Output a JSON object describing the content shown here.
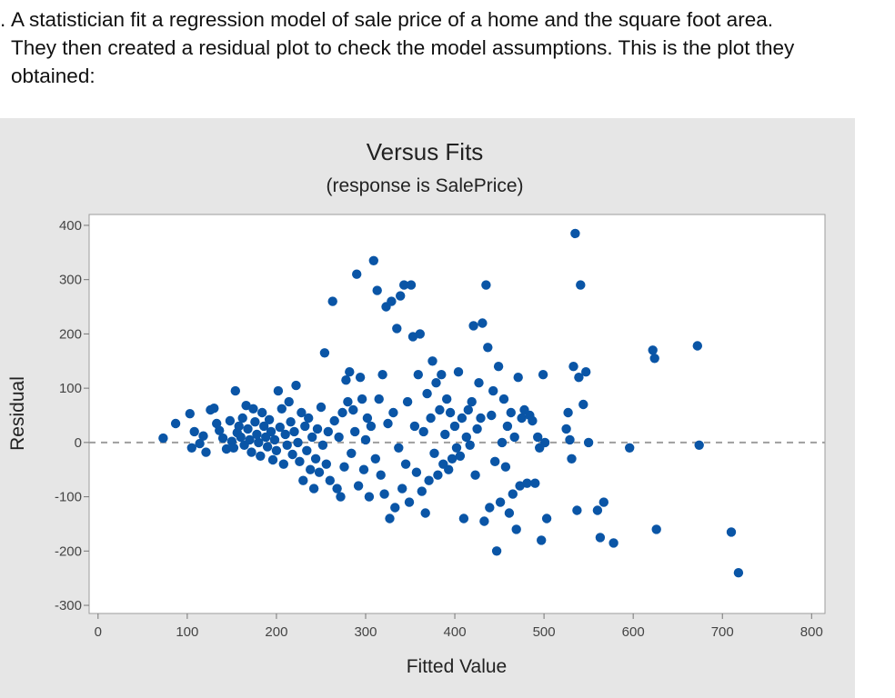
{
  "question": {
    "marker": ".",
    "text": "A statistician fit a regression model of sale price of a home and the square foot area. They then created a residual plot to check the model assumptions.  This is the plot they obtained:"
  },
  "chart_data": {
    "type": "scatter",
    "title": "Versus Fits",
    "subtitle": "(response is SalePrice)",
    "xlabel": "Fitted Value",
    "ylabel": "Residual",
    "xlim": [
      -10,
      815
    ],
    "ylim": [
      -315,
      420
    ],
    "xticks": [
      0,
      100,
      200,
      300,
      400,
      500,
      600,
      700,
      800
    ],
    "yticks": [
      400,
      300,
      200,
      100,
      0,
      -100,
      -200,
      -300
    ],
    "x_tick_labels": [
      "0",
      "100",
      "200",
      "300",
      "400",
      "500",
      "600",
      "700",
      "800"
    ],
    "y_tick_labels": [
      "400",
      "300",
      "200",
      "100",
      "0",
      "-100",
      "-200",
      "-300"
    ],
    "reference_line": {
      "y": 0,
      "style": "dashed"
    },
    "grid": false,
    "colors": {
      "points": "#0a55a6",
      "reference_line": "#9e9e9e",
      "plot_bg": "#ffffff",
      "figure_bg": "#e6e6e6"
    },
    "series": [
      {
        "points": [
          [
            73,
            8
          ],
          [
            87,
            35
          ],
          [
            103,
            53
          ],
          [
            105,
            -10
          ],
          [
            108,
            20
          ],
          [
            114,
            -2
          ],
          [
            118,
            12
          ],
          [
            121,
            -18
          ],
          [
            126,
            60
          ],
          [
            130,
            63
          ],
          [
            133,
            35
          ],
          [
            136,
            22
          ],
          [
            140,
            8
          ],
          [
            144,
            -12
          ],
          [
            148,
            40
          ],
          [
            150,
            2
          ],
          [
            152,
            -10
          ],
          [
            154,
            95
          ],
          [
            156,
            18
          ],
          [
            158,
            30
          ],
          [
            160,
            10
          ],
          [
            162,
            45
          ],
          [
            164,
            -5
          ],
          [
            166,
            68
          ],
          [
            168,
            25
          ],
          [
            170,
            5
          ],
          [
            172,
            -18
          ],
          [
            174,
            62
          ],
          [
            176,
            38
          ],
          [
            178,
            15
          ],
          [
            180,
            0
          ],
          [
            182,
            -25
          ],
          [
            184,
            55
          ],
          [
            186,
            30
          ],
          [
            188,
            10
          ],
          [
            190,
            -8
          ],
          [
            192,
            42
          ],
          [
            194,
            20
          ],
          [
            196,
            -32
          ],
          [
            198,
            5
          ],
          [
            200,
            -15
          ],
          [
            202,
            95
          ],
          [
            204,
            28
          ],
          [
            206,
            62
          ],
          [
            208,
            -40
          ],
          [
            210,
            15
          ],
          [
            212,
            -5
          ],
          [
            214,
            75
          ],
          [
            216,
            38
          ],
          [
            218,
            -22
          ],
          [
            220,
            20
          ],
          [
            222,
            105
          ],
          [
            224,
            0
          ],
          [
            226,
            -35
          ],
          [
            228,
            55
          ],
          [
            230,
            -70
          ],
          [
            232,
            30
          ],
          [
            234,
            -15
          ],
          [
            236,
            45
          ],
          [
            238,
            -50
          ],
          [
            240,
            10
          ],
          [
            242,
            -85
          ],
          [
            244,
            -30
          ],
          [
            246,
            25
          ],
          [
            248,
            -55
          ],
          [
            250,
            65
          ],
          [
            252,
            -5
          ],
          [
            254,
            165
          ],
          [
            256,
            -40
          ],
          [
            258,
            20
          ],
          [
            260,
            -70
          ],
          [
            263,
            260
          ],
          [
            265,
            40
          ],
          [
            268,
            -85
          ],
          [
            270,
            10
          ],
          [
            272,
            -100
          ],
          [
            274,
            55
          ],
          [
            276,
            -45
          ],
          [
            278,
            115
          ],
          [
            280,
            75
          ],
          [
            282,
            130
          ],
          [
            284,
            -20
          ],
          [
            286,
            60
          ],
          [
            288,
            20
          ],
          [
            290,
            310
          ],
          [
            292,
            -80
          ],
          [
            294,
            120
          ],
          [
            296,
            80
          ],
          [
            298,
            -50
          ],
          [
            300,
            5
          ],
          [
            302,
            45
          ],
          [
            304,
            -100
          ],
          [
            306,
            30
          ],
          [
            309,
            335
          ],
          [
            311,
            -30
          ],
          [
            313,
            280
          ],
          [
            315,
            80
          ],
          [
            317,
            -60
          ],
          [
            319,
            125
          ],
          [
            321,
            -95
          ],
          [
            323,
            250
          ],
          [
            325,
            35
          ],
          [
            327,
            -140
          ],
          [
            329,
            260
          ],
          [
            331,
            55
          ],
          [
            333,
            -120
          ],
          [
            335,
            210
          ],
          [
            337,
            -10
          ],
          [
            339,
            270
          ],
          [
            341,
            -85
          ],
          [
            343,
            290
          ],
          [
            345,
            -40
          ],
          [
            347,
            75
          ],
          [
            349,
            -110
          ],
          [
            351,
            290
          ],
          [
            353,
            195
          ],
          [
            355,
            30
          ],
          [
            357,
            -55
          ],
          [
            359,
            125
          ],
          [
            361,
            200
          ],
          [
            363,
            -90
          ],
          [
            365,
            20
          ],
          [
            367,
            -130
          ],
          [
            369,
            90
          ],
          [
            371,
            -70
          ],
          [
            373,
            45
          ],
          [
            375,
            150
          ],
          [
            377,
            -20
          ],
          [
            379,
            110
          ],
          [
            381,
            -60
          ],
          [
            383,
            60
          ],
          [
            385,
            125
          ],
          [
            387,
            -40
          ],
          [
            389,
            15
          ],
          [
            391,
            80
          ],
          [
            393,
            -50
          ],
          [
            395,
            55
          ],
          [
            397,
            -30
          ],
          [
            400,
            30
          ],
          [
            402,
            -10
          ],
          [
            404,
            130
          ],
          [
            406,
            -25
          ],
          [
            408,
            45
          ],
          [
            410,
            -140
          ],
          [
            413,
            10
          ],
          [
            415,
            60
          ],
          [
            417,
            -5
          ],
          [
            419,
            75
          ],
          [
            421,
            215
          ],
          [
            423,
            -60
          ],
          [
            425,
            25
          ],
          [
            427,
            110
          ],
          [
            429,
            45
          ],
          [
            431,
            220
          ],
          [
            433,
            -145
          ],
          [
            435,
            290
          ],
          [
            437,
            175
          ],
          [
            439,
            -120
          ],
          [
            441,
            50
          ],
          [
            443,
            95
          ],
          [
            445,
            -35
          ],
          [
            447,
            -200
          ],
          [
            449,
            140
          ],
          [
            451,
            -110
          ],
          [
            453,
            0
          ],
          [
            455,
            80
          ],
          [
            457,
            -45
          ],
          [
            459,
            30
          ],
          [
            461,
            -130
          ],
          [
            463,
            55
          ],
          [
            465,
            -95
          ],
          [
            467,
            10
          ],
          [
            469,
            -160
          ],
          [
            471,
            120
          ],
          [
            473,
            -80
          ],
          [
            475,
            45
          ],
          [
            478,
            60
          ],
          [
            481,
            -75
          ],
          [
            484,
            50
          ],
          [
            487,
            40
          ],
          [
            490,
            -75
          ],
          [
            493,
            10
          ],
          [
            495,
            -10
          ],
          [
            497,
            -180
          ],
          [
            499,
            125
          ],
          [
            501,
            0
          ],
          [
            503,
            -140
          ],
          [
            525,
            25
          ],
          [
            527,
            55
          ],
          [
            529,
            5
          ],
          [
            531,
            -30
          ],
          [
            533,
            140
          ],
          [
            535,
            385
          ],
          [
            537,
            -125
          ],
          [
            539,
            120
          ],
          [
            541,
            290
          ],
          [
            544,
            70
          ],
          [
            547,
            130
          ],
          [
            550,
            0
          ],
          [
            560,
            -125
          ],
          [
            563,
            -175
          ],
          [
            567,
            -110
          ],
          [
            578,
            -185
          ],
          [
            596,
            -10
          ],
          [
            622,
            170
          ],
          [
            624,
            155
          ],
          [
            626,
            -160
          ],
          [
            672,
            178
          ],
          [
            674,
            -5
          ],
          [
            710,
            -165
          ],
          [
            718,
            -240
          ]
        ]
      }
    ]
  }
}
